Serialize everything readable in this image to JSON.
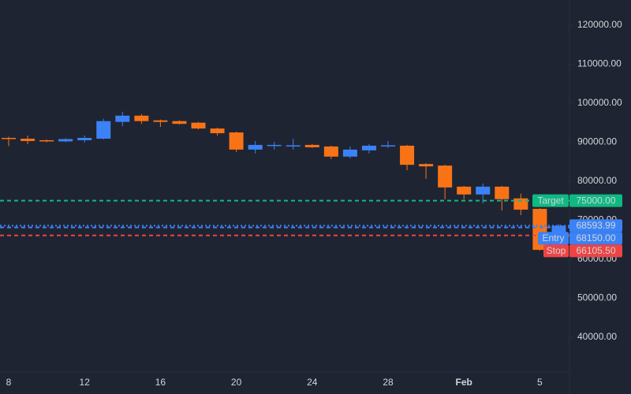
{
  "chart_data": {
    "type": "candlestick",
    "categories": [
      "8",
      null,
      null,
      null,
      "12",
      null,
      null,
      null,
      "16",
      null,
      null,
      null,
      "20",
      null,
      null,
      null,
      "24",
      null,
      null,
      null,
      "28",
      null,
      null,
      null,
      "Feb",
      null,
      null,
      null,
      "5",
      null
    ],
    "open": [
      91100,
      90900,
      90500,
      90200,
      90500,
      90900,
      95200,
      96800,
      95600,
      95400,
      95000,
      93500,
      92500,
      88100,
      89000,
      89100,
      89300,
      88900,
      86300,
      87900,
      89000,
      89100,
      84400,
      84000,
      78600,
      76600,
      78600,
      75600,
      72900,
      62500
    ],
    "high": [
      91400,
      91700,
      90700,
      91000,
      91700,
      96000,
      97800,
      97200,
      95800,
      95600,
      95200,
      93700,
      92700,
      90300,
      90100,
      90900,
      89500,
      89100,
      88900,
      89500,
      90300,
      89300,
      84600,
      84200,
      78800,
      79400,
      78800,
      76800,
      73100,
      69000
    ],
    "low": [
      89000,
      89500,
      90000,
      90000,
      89900,
      90700,
      94100,
      94700,
      93900,
      94500,
      93300,
      91700,
      87500,
      87100,
      88100,
      88100,
      88500,
      85700,
      85900,
      87100,
      88500,
      82800,
      80600,
      75400,
      75400,
      74300,
      72500,
      71300,
      62200,
      62000
    ],
    "close": [
      90900,
      90300,
      90200,
      90800,
      91100,
      95400,
      96800,
      95400,
      95200,
      94700,
      93500,
      92300,
      88100,
      89300,
      89300,
      89200,
      88700,
      86300,
      88100,
      89100,
      89200,
      84200,
      83800,
      78400,
      76600,
      78600,
      75400,
      72700,
      62400,
      68593.99
    ],
    "up_color": "#3b82f6",
    "down_color": "#f97316",
    "ylim": [
      31100,
      126450
    ],
    "yticks": [
      {
        "value": 40000,
        "label": "40000.00"
      },
      {
        "value": 50000,
        "label": "50000.00"
      },
      {
        "value": 60000,
        "label": "60000.00"
      },
      {
        "value": 70000,
        "label": "70000.00"
      },
      {
        "value": 80000,
        "label": "80000.00"
      },
      {
        "value": 90000,
        "label": "90000.00"
      },
      {
        "value": 100000,
        "label": "100000.00"
      },
      {
        "value": 110000,
        "label": "110000.00"
      },
      {
        "value": 120000,
        "label": "120000.00"
      }
    ],
    "last_price": {
      "value": 68593.99,
      "color": "#3b82f6"
    },
    "levels": [
      {
        "label": "Target",
        "value": 75000,
        "value_label": "75000.00",
        "color": "#10b981"
      },
      {
        "label": "Entry",
        "value": 68150,
        "value_label": "68150.00",
        "color": "#3b82f6"
      },
      {
        "label": "Stop",
        "value": 66105.5,
        "value_label": "66105.50",
        "color": "#ef4444"
      }
    ]
  }
}
